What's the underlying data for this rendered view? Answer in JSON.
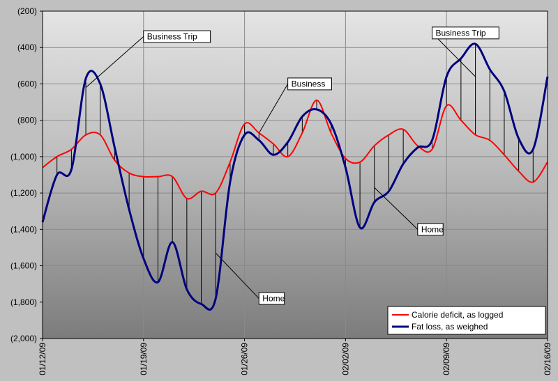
{
  "chart_data": {
    "type": "line",
    "title": "",
    "xlabel": "",
    "ylabel": "",
    "ylim": [
      -2000,
      -200
    ],
    "ytick_labels": [
      "(200)",
      "(400)",
      "(600)",
      "(800)",
      "(1,000)",
      "(1,200)",
      "(1,400)",
      "(1,600)",
      "(1,800)",
      "(2,000)"
    ],
    "ytick_values": [
      -200,
      -400,
      -600,
      -800,
      -1000,
      -1200,
      -1400,
      -1600,
      -1800,
      -2000
    ],
    "xlim": [
      "2009-01-12",
      "2009-02-16"
    ],
    "xtick_labels": [
      "01/12/09",
      "01/19/09",
      "01/26/09",
      "02/02/09",
      "02/09/09",
      "02/16/09"
    ],
    "xtick_values": [
      "2009-01-12",
      "2009-01-19",
      "2009-01-26",
      "2009-02-02",
      "2009-02-09",
      "2009-02-16"
    ],
    "grid": true,
    "legend_position": "bottom-right",
    "series": [
      {
        "name": "Calorie deficit, as logged",
        "color": "#ff0000",
        "points": [
          [
            "2009-01-12",
            -1060
          ],
          [
            "2009-01-13",
            -1000
          ],
          [
            "2009-01-14",
            -960
          ],
          [
            "2009-01-15",
            -880
          ],
          [
            "2009-01-16",
            -880
          ],
          [
            "2009-01-17",
            -1020
          ],
          [
            "2009-01-18",
            -1090
          ],
          [
            "2009-01-19",
            -1110
          ],
          [
            "2009-01-20",
            -1110
          ],
          [
            "2009-01-21",
            -1110
          ],
          [
            "2009-01-22",
            -1230
          ],
          [
            "2009-01-23",
            -1190
          ],
          [
            "2009-01-24",
            -1200
          ],
          [
            "2009-01-25",
            -1030
          ],
          [
            "2009-01-26",
            -820
          ],
          [
            "2009-01-27",
            -870
          ],
          [
            "2009-01-28",
            -930
          ],
          [
            "2009-01-29",
            -1000
          ],
          [
            "2009-01-30",
            -870
          ],
          [
            "2009-01-31",
            -690
          ],
          [
            "2009-02-01",
            -870
          ],
          [
            "2009-02-02",
            -1010
          ],
          [
            "2009-02-03",
            -1030
          ],
          [
            "2009-02-04",
            -940
          ],
          [
            "2009-02-05",
            -880
          ],
          [
            "2009-02-06",
            -850
          ],
          [
            "2009-02-07",
            -940
          ],
          [
            "2009-02-08",
            -960
          ],
          [
            "2009-02-09",
            -720
          ],
          [
            "2009-02-10",
            -800
          ],
          [
            "2009-02-11",
            -880
          ],
          [
            "2009-02-12",
            -910
          ],
          [
            "2009-02-13",
            -990
          ],
          [
            "2009-02-14",
            -1080
          ],
          [
            "2009-02-15",
            -1140
          ],
          [
            "2009-02-16",
            -1030
          ]
        ]
      },
      {
        "name": "Fat loss, as weighed",
        "color": "#000080",
        "points": [
          [
            "2009-01-12",
            -1360
          ],
          [
            "2009-01-13",
            -1100
          ],
          [
            "2009-01-14",
            -1070
          ],
          [
            "2009-01-15",
            -570
          ],
          [
            "2009-01-16",
            -600
          ],
          [
            "2009-01-17",
            -950
          ],
          [
            "2009-01-18",
            -1290
          ],
          [
            "2009-01-19",
            -1560
          ],
          [
            "2009-01-20",
            -1690
          ],
          [
            "2009-01-21",
            -1470
          ],
          [
            "2009-01-22",
            -1730
          ],
          [
            "2009-01-23",
            -1810
          ],
          [
            "2009-01-24",
            -1780
          ],
          [
            "2009-01-25",
            -1140
          ],
          [
            "2009-01-26",
            -880
          ],
          [
            "2009-01-27",
            -910
          ],
          [
            "2009-01-28",
            -990
          ],
          [
            "2009-01-29",
            -920
          ],
          [
            "2009-01-30",
            -780
          ],
          [
            "2009-01-31",
            -740
          ],
          [
            "2009-02-01",
            -820
          ],
          [
            "2009-02-02",
            -1060
          ],
          [
            "2009-02-03",
            -1390
          ],
          [
            "2009-02-04",
            -1250
          ],
          [
            "2009-02-05",
            -1190
          ],
          [
            "2009-02-06",
            -1040
          ],
          [
            "2009-02-07",
            -950
          ],
          [
            "2009-02-08",
            -910
          ],
          [
            "2009-02-09",
            -560
          ],
          [
            "2009-02-10",
            -460
          ],
          [
            "2009-02-11",
            -380
          ],
          [
            "2009-02-12",
            -520
          ],
          [
            "2009-02-13",
            -640
          ],
          [
            "2009-02-14",
            -900
          ],
          [
            "2009-02-15",
            -960
          ],
          [
            "2009-02-16",
            -560
          ]
        ]
      }
    ],
    "annotations": [
      {
        "text": "Business Trip",
        "target": [
          "2009-01-15",
          -620
        ],
        "label_at": [
          "2009-01-19",
          -340
        ]
      },
      {
        "text": "Business",
        "target": [
          "2009-01-27",
          -870
        ],
        "label_at": [
          "2009-01-29",
          -600
        ]
      },
      {
        "text": "Business Trip",
        "target": [
          "2009-02-11",
          -560
        ],
        "label_at": [
          "2009-02-08",
          -320
        ]
      },
      {
        "text": "Home",
        "target": [
          "2009-01-24",
          -1530
        ],
        "label_at": [
          "2009-01-27",
          -1780
        ]
      },
      {
        "text": "Home",
        "target": [
          "2009-02-04",
          -1170
        ],
        "label_at": [
          "2009-02-07",
          -1400
        ]
      }
    ]
  }
}
